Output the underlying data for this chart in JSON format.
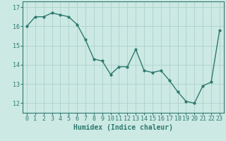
{
  "title": "",
  "xlabel": "Humidex (Indice chaleur)",
  "x": [
    0,
    1,
    2,
    3,
    4,
    5,
    6,
    7,
    8,
    9,
    10,
    11,
    12,
    13,
    14,
    15,
    16,
    17,
    18,
    19,
    20,
    21,
    22,
    23
  ],
  "y": [
    16.0,
    16.5,
    16.5,
    16.7,
    16.6,
    16.5,
    16.1,
    15.3,
    14.3,
    14.2,
    13.5,
    13.9,
    13.9,
    14.8,
    13.7,
    13.6,
    13.7,
    13.2,
    12.6,
    12.1,
    12.0,
    12.9,
    13.1,
    15.8
  ],
  "line_color": "#2d7a6e",
  "marker": "o",
  "marker_size": 2.0,
  "bg_color": "#cce9e4",
  "grid_color": "#aed0cb",
  "ylim": [
    11.5,
    17.3
  ],
  "yticks": [
    12,
    13,
    14,
    15,
    16,
    17
  ],
  "xticks": [
    0,
    1,
    2,
    3,
    4,
    5,
    6,
    7,
    8,
    9,
    10,
    11,
    12,
    13,
    14,
    15,
    16,
    17,
    18,
    19,
    20,
    21,
    22,
    23
  ],
  "xlabel_fontsize": 7,
  "tick_fontsize": 6,
  "line_width": 1.0
}
